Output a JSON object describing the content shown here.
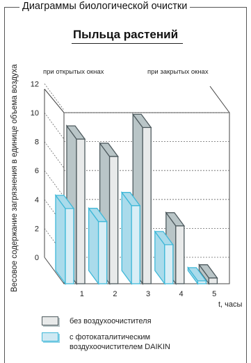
{
  "banner": "Диаграммы биологической очистки",
  "legend": {
    "without": "без воздухоочистителя",
    "with_line1": "с фотокаталитическим",
    "with_line2": "воздухоочистителем DAIKIN"
  },
  "colors": {
    "gray_face": "#e8eaea",
    "gray_side": "#b9c5c7",
    "gray_edge": "#4e5a5e",
    "blue_face": "#d8eef6",
    "blue_side": "#aadbeb",
    "blue_edge": "#3fb8d8",
    "frame": "#444444"
  },
  "chart_data": {
    "type": "bar",
    "title": "Пыльца растений",
    "xlabel": "t, часы",
    "ylabel": "Весовое содержание загрязнения в единице объема воздуха",
    "categories": [
      "1",
      "2",
      "3",
      "4",
      "5"
    ],
    "ylim": [
      0,
      12
    ],
    "yticks": [
      0,
      2,
      4,
      6,
      8,
      10,
      12
    ],
    "annotations": [
      "при открытых окнах",
      "при закрытых окнах"
    ],
    "series": [
      {
        "name": "без воздухоочистителя",
        "values": [
          10,
          8.8,
          10.8,
          4,
          0.4
        ]
      },
      {
        "name": "с фотокаталитическим воздухоочистителем DAIKIN",
        "values": [
          5.2,
          4.3,
          5.4,
          2.7,
          0.2
        ]
      }
    ]
  }
}
